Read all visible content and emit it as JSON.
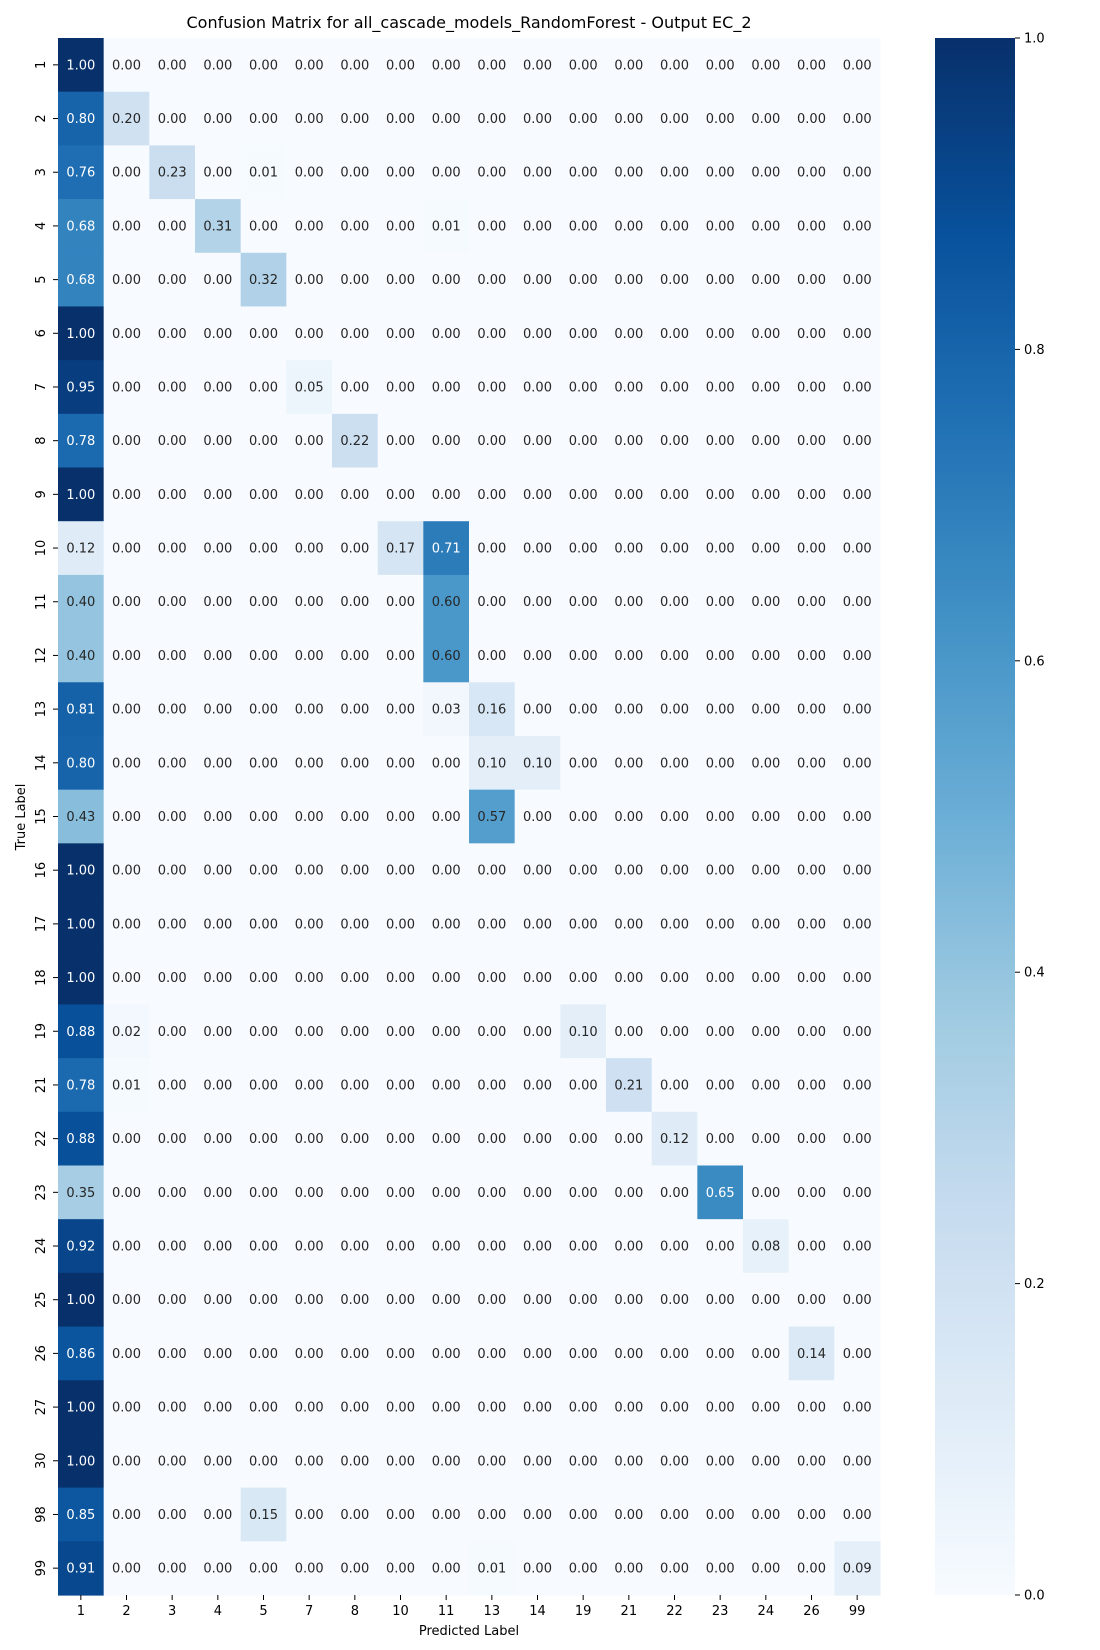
{
  "chart_data": {
    "type": "heatmap",
    "title": "Confusion Matrix for all_cascade_models_RandomForest - Output EC_2",
    "xlabel": "Predicted Label",
    "ylabel": "True Label",
    "x_categories": [
      "1",
      "2",
      "3",
      "4",
      "5",
      "7",
      "8",
      "10",
      "11",
      "13",
      "14",
      "19",
      "21",
      "22",
      "23",
      "24",
      "26",
      "99"
    ],
    "y_categories": [
      "1",
      "2",
      "3",
      "4",
      "5",
      "6",
      "7",
      "8",
      "9",
      "10",
      "11",
      "12",
      "13",
      "14",
      "15",
      "16",
      "17",
      "18",
      "19",
      "21",
      "22",
      "23",
      "24",
      "25",
      "26",
      "27",
      "30",
      "98",
      "99"
    ],
    "values": [
      [
        1.0,
        0.0,
        0.0,
        0.0,
        0.0,
        0.0,
        0.0,
        0.0,
        0.0,
        0.0,
        0.0,
        0.0,
        0.0,
        0.0,
        0.0,
        0.0,
        0.0,
        0.0
      ],
      [
        0.8,
        0.2,
        0.0,
        0.0,
        0.0,
        0.0,
        0.0,
        0.0,
        0.0,
        0.0,
        0.0,
        0.0,
        0.0,
        0.0,
        0.0,
        0.0,
        0.0,
        0.0
      ],
      [
        0.76,
        0.0,
        0.23,
        0.0,
        0.01,
        0.0,
        0.0,
        0.0,
        0.0,
        0.0,
        0.0,
        0.0,
        0.0,
        0.0,
        0.0,
        0.0,
        0.0,
        0.0
      ],
      [
        0.68,
        0.0,
        0.0,
        0.31,
        0.0,
        0.0,
        0.0,
        0.0,
        0.01,
        0.0,
        0.0,
        0.0,
        0.0,
        0.0,
        0.0,
        0.0,
        0.0,
        0.0
      ],
      [
        0.68,
        0.0,
        0.0,
        0.0,
        0.32,
        0.0,
        0.0,
        0.0,
        0.0,
        0.0,
        0.0,
        0.0,
        0.0,
        0.0,
        0.0,
        0.0,
        0.0,
        0.0
      ],
      [
        1.0,
        0.0,
        0.0,
        0.0,
        0.0,
        0.0,
        0.0,
        0.0,
        0.0,
        0.0,
        0.0,
        0.0,
        0.0,
        0.0,
        0.0,
        0.0,
        0.0,
        0.0
      ],
      [
        0.95,
        0.0,
        0.0,
        0.0,
        0.0,
        0.05,
        0.0,
        0.0,
        0.0,
        0.0,
        0.0,
        0.0,
        0.0,
        0.0,
        0.0,
        0.0,
        0.0,
        0.0
      ],
      [
        0.78,
        0.0,
        0.0,
        0.0,
        0.0,
        0.0,
        0.22,
        0.0,
        0.0,
        0.0,
        0.0,
        0.0,
        0.0,
        0.0,
        0.0,
        0.0,
        0.0,
        0.0
      ],
      [
        1.0,
        0.0,
        0.0,
        0.0,
        0.0,
        0.0,
        0.0,
        0.0,
        0.0,
        0.0,
        0.0,
        0.0,
        0.0,
        0.0,
        0.0,
        0.0,
        0.0,
        0.0
      ],
      [
        0.12,
        0.0,
        0.0,
        0.0,
        0.0,
        0.0,
        0.0,
        0.17,
        0.71,
        0.0,
        0.0,
        0.0,
        0.0,
        0.0,
        0.0,
        0.0,
        0.0,
        0.0
      ],
      [
        0.4,
        0.0,
        0.0,
        0.0,
        0.0,
        0.0,
        0.0,
        0.0,
        0.6,
        0.0,
        0.0,
        0.0,
        0.0,
        0.0,
        0.0,
        0.0,
        0.0,
        0.0
      ],
      [
        0.4,
        0.0,
        0.0,
        0.0,
        0.0,
        0.0,
        0.0,
        0.0,
        0.6,
        0.0,
        0.0,
        0.0,
        0.0,
        0.0,
        0.0,
        0.0,
        0.0,
        0.0
      ],
      [
        0.81,
        0.0,
        0.0,
        0.0,
        0.0,
        0.0,
        0.0,
        0.0,
        0.03,
        0.16,
        0.0,
        0.0,
        0.0,
        0.0,
        0.0,
        0.0,
        0.0,
        0.0
      ],
      [
        0.8,
        0.0,
        0.0,
        0.0,
        0.0,
        0.0,
        0.0,
        0.0,
        0.0,
        0.1,
        0.1,
        0.0,
        0.0,
        0.0,
        0.0,
        0.0,
        0.0,
        0.0
      ],
      [
        0.43,
        0.0,
        0.0,
        0.0,
        0.0,
        0.0,
        0.0,
        0.0,
        0.0,
        0.57,
        0.0,
        0.0,
        0.0,
        0.0,
        0.0,
        0.0,
        0.0,
        0.0
      ],
      [
        1.0,
        0.0,
        0.0,
        0.0,
        0.0,
        0.0,
        0.0,
        0.0,
        0.0,
        0.0,
        0.0,
        0.0,
        0.0,
        0.0,
        0.0,
        0.0,
        0.0,
        0.0
      ],
      [
        1.0,
        0.0,
        0.0,
        0.0,
        0.0,
        0.0,
        0.0,
        0.0,
        0.0,
        0.0,
        0.0,
        0.0,
        0.0,
        0.0,
        0.0,
        0.0,
        0.0,
        0.0
      ],
      [
        1.0,
        0.0,
        0.0,
        0.0,
        0.0,
        0.0,
        0.0,
        0.0,
        0.0,
        0.0,
        0.0,
        0.0,
        0.0,
        0.0,
        0.0,
        0.0,
        0.0,
        0.0
      ],
      [
        0.88,
        0.02,
        0.0,
        0.0,
        0.0,
        0.0,
        0.0,
        0.0,
        0.0,
        0.0,
        0.0,
        0.1,
        0.0,
        0.0,
        0.0,
        0.0,
        0.0,
        0.0
      ],
      [
        0.78,
        0.01,
        0.0,
        0.0,
        0.0,
        0.0,
        0.0,
        0.0,
        0.0,
        0.0,
        0.0,
        0.0,
        0.21,
        0.0,
        0.0,
        0.0,
        0.0,
        0.0
      ],
      [
        0.88,
        0.0,
        0.0,
        0.0,
        0.0,
        0.0,
        0.0,
        0.0,
        0.0,
        0.0,
        0.0,
        0.0,
        0.0,
        0.12,
        0.0,
        0.0,
        0.0,
        0.0
      ],
      [
        0.35,
        0.0,
        0.0,
        0.0,
        0.0,
        0.0,
        0.0,
        0.0,
        0.0,
        0.0,
        0.0,
        0.0,
        0.0,
        0.0,
        0.65,
        0.0,
        0.0,
        0.0
      ],
      [
        0.92,
        0.0,
        0.0,
        0.0,
        0.0,
        0.0,
        0.0,
        0.0,
        0.0,
        0.0,
        0.0,
        0.0,
        0.0,
        0.0,
        0.0,
        0.08,
        0.0,
        0.0
      ],
      [
        1.0,
        0.0,
        0.0,
        0.0,
        0.0,
        0.0,
        0.0,
        0.0,
        0.0,
        0.0,
        0.0,
        0.0,
        0.0,
        0.0,
        0.0,
        0.0,
        0.0,
        0.0
      ],
      [
        0.86,
        0.0,
        0.0,
        0.0,
        0.0,
        0.0,
        0.0,
        0.0,
        0.0,
        0.0,
        0.0,
        0.0,
        0.0,
        0.0,
        0.0,
        0.0,
        0.14,
        0.0
      ],
      [
        1.0,
        0.0,
        0.0,
        0.0,
        0.0,
        0.0,
        0.0,
        0.0,
        0.0,
        0.0,
        0.0,
        0.0,
        0.0,
        0.0,
        0.0,
        0.0,
        0.0,
        0.0
      ],
      [
        1.0,
        0.0,
        0.0,
        0.0,
        0.0,
        0.0,
        0.0,
        0.0,
        0.0,
        0.0,
        0.0,
        0.0,
        0.0,
        0.0,
        0.0,
        0.0,
        0.0,
        0.0
      ],
      [
        0.85,
        0.0,
        0.0,
        0.0,
        0.15,
        0.0,
        0.0,
        0.0,
        0.0,
        0.0,
        0.0,
        0.0,
        0.0,
        0.0,
        0.0,
        0.0,
        0.0,
        0.0
      ],
      [
        0.91,
        0.0,
        0.0,
        0.0,
        0.0,
        0.0,
        0.0,
        0.0,
        0.0,
        0.01,
        0.0,
        0.0,
        0.0,
        0.0,
        0.0,
        0.0,
        0.0,
        0.09
      ]
    ],
    "value_format": "0.00",
    "colorbar": {
      "range": [
        0.0,
        1.0
      ],
      "ticks": [
        0.0,
        0.2,
        0.4,
        0.6,
        0.8,
        1.0
      ],
      "tick_labels": [
        "0.0",
        "0.2",
        "0.4",
        "0.6",
        "0.8",
        "1.0"
      ],
      "colormap": "Blues",
      "stops": [
        "#f7fbff",
        "#deebf7",
        "#c6dbef",
        "#9ecae1",
        "#6baed6",
        "#4292c6",
        "#2171b5",
        "#08519c",
        "#08306b"
      ]
    },
    "grid": false,
    "legend": "colorbar-right"
  }
}
